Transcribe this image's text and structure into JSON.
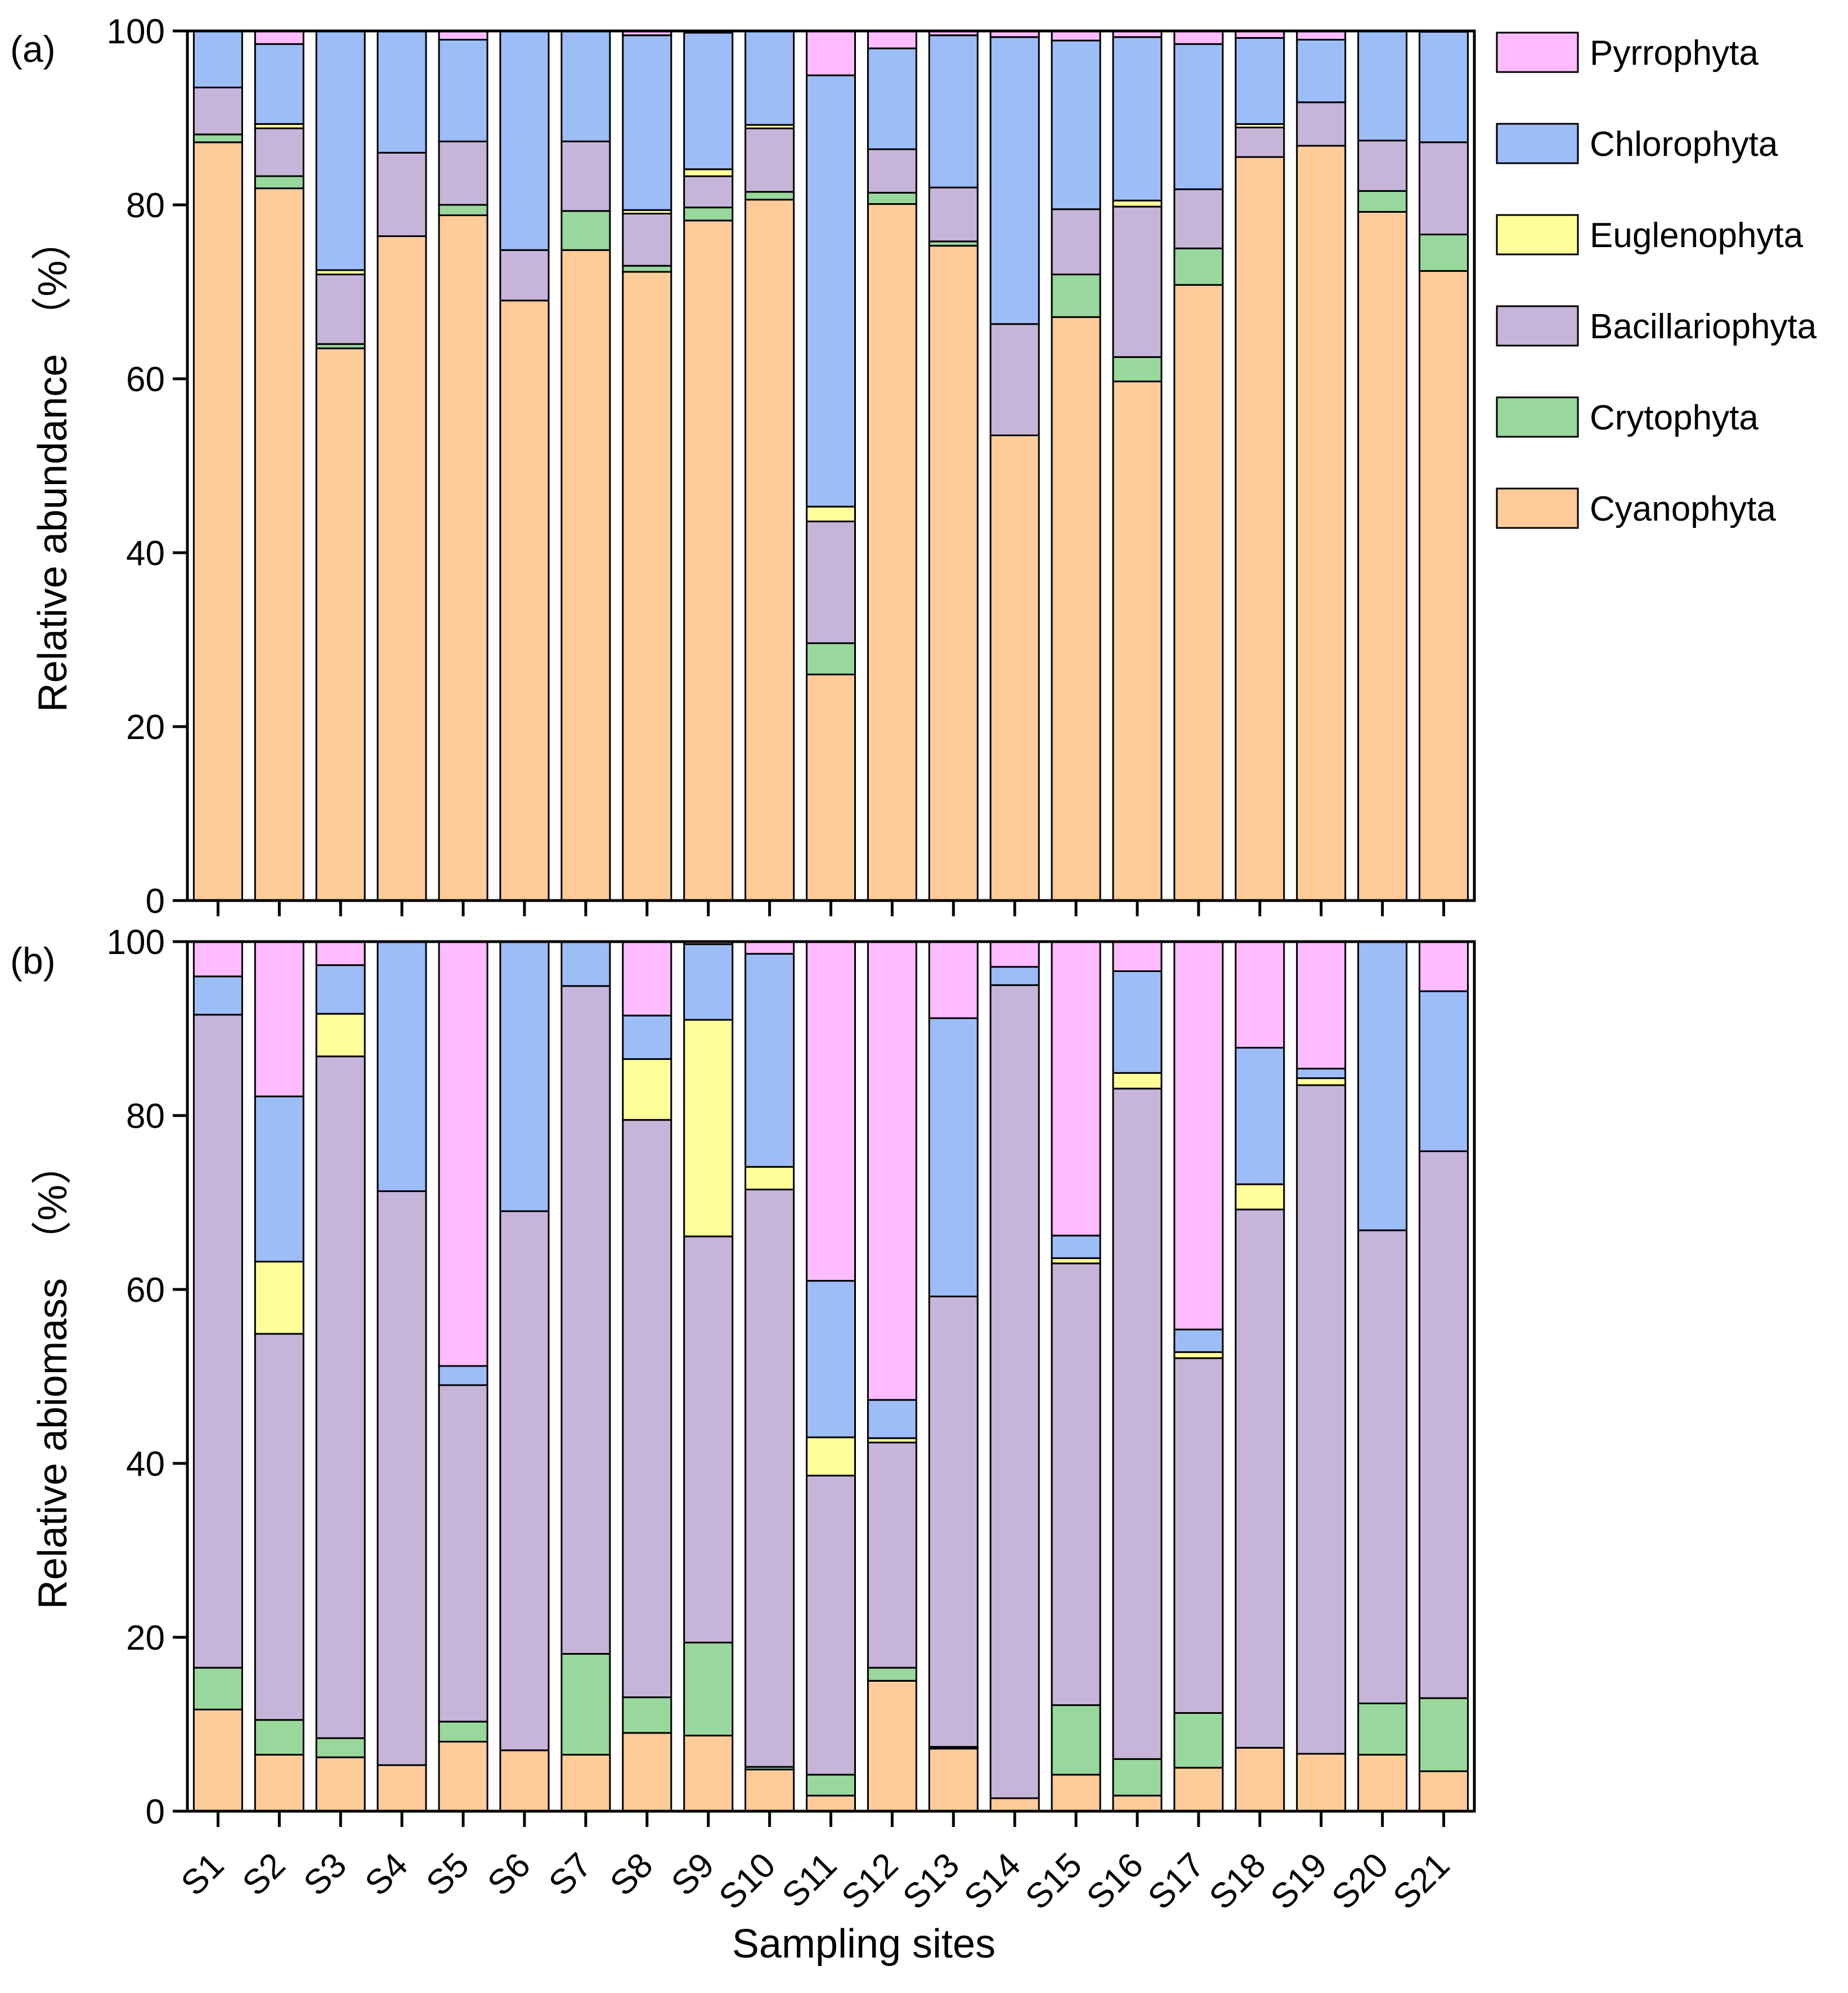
{
  "colors": {
    "Cyanophyta": "#FFCC99",
    "Crytophyta": "#99D89C",
    "Bacillariophyta": "#C6B5D9",
    "Euglenophyta": "#FFFF99",
    "Chlorophyta": "#9DBDF8",
    "Pyrrophyta": "#FFBBFF"
  },
  "legend": [
    "Pyrrophyta",
    "Chlorophyta",
    "Euglenophyta",
    "Bacillariophyta",
    "Crytophyta",
    "Cyanophyta"
  ],
  "chart_data": [
    {
      "type": "bar",
      "stacked": true,
      "panel_label": "(a)",
      "ylabel": "Relative abundance",
      "ylabel_unit": "（%）",
      "xlabel": "",
      "ylim": [
        0,
        100
      ],
      "yticks": [
        "0",
        "20",
        "40",
        "60",
        "80",
        "100"
      ],
      "categories": [
        "S1",
        "S2",
        "S3",
        "S4",
        "S5",
        "S6",
        "S7",
        "S8",
        "S9",
        "S10",
        "S11",
        "S12",
        "S13",
        "S14",
        "S15",
        "S16",
        "S17",
        "S18",
        "S19",
        "S20",
        "S21"
      ],
      "series": [
        {
          "name": "Cyanophyta",
          "values": [
            87.2,
            81.9,
            63.5,
            76.4,
            78.8,
            69.0,
            74.8,
            72.3,
            78.2,
            80.6,
            26.0,
            80.1,
            75.3,
            53.5,
            67.1,
            59.7,
            70.8,
            85.5,
            86.8,
            79.2,
            72.4
          ]
        },
        {
          "name": "Crytophyta",
          "values": [
            0.9,
            1.4,
            0.5,
            0,
            1.2,
            0,
            4.5,
            0.7,
            1.5,
            0.9,
            3.6,
            1.3,
            0.5,
            0,
            4.9,
            2.8,
            4.2,
            0,
            0,
            2.4,
            4.2
          ]
        },
        {
          "name": "Bacillariophyta",
          "values": [
            5.4,
            5.5,
            8.0,
            9.6,
            7.3,
            5.8,
            8.0,
            6.0,
            3.6,
            7.3,
            14.0,
            5.0,
            6.2,
            12.8,
            7.5,
            17.3,
            6.8,
            3.4,
            5.0,
            5.8,
            10.6
          ]
        },
        {
          "name": "Euglenophyta",
          "values": [
            0,
            0.5,
            0.5,
            0,
            0,
            0,
            0,
            0.4,
            0.8,
            0.4,
            1.7,
            0,
            0,
            0,
            0,
            0.7,
            0,
            0.4,
            0,
            0,
            0
          ]
        },
        {
          "name": "Chlorophyta",
          "values": [
            6.5,
            9.2,
            27.5,
            14.0,
            11.7,
            25.2,
            12.7,
            20.1,
            15.7,
            10.8,
            49.6,
            11.6,
            17.5,
            33.0,
            19.4,
            18.8,
            16.7,
            9.9,
            7.2,
            12.6,
            12.7
          ]
        },
        {
          "name": "Pyrrophyta",
          "values": [
            0,
            1.5,
            0,
            0,
            1.0,
            0,
            0,
            0.5,
            0.2,
            0,
            5.1,
            2.0,
            0.5,
            0.7,
            1.1,
            0.7,
            1.5,
            0.8,
            1.0,
            0,
            0.1
          ]
        }
      ]
    },
    {
      "type": "bar",
      "stacked": true,
      "panel_label": "(b)",
      "ylabel": "Relative abiomass",
      "ylabel_unit": "（%）",
      "xlabel": "Sampling sites",
      "ylim": [
        0,
        100
      ],
      "yticks": [
        "0",
        "20",
        "40",
        "60",
        "80",
        "100"
      ],
      "categories": [
        "S1",
        "S2",
        "S3",
        "S4",
        "S5",
        "S6",
        "S7",
        "S8",
        "S9",
        "S10",
        "S11",
        "S12",
        "S13",
        "S14",
        "S15",
        "S16",
        "S17",
        "S18",
        "S19",
        "S20",
        "S21"
      ],
      "series": [
        {
          "name": "Cyanophyta",
          "values": [
            11.7,
            6.5,
            6.2,
            5.3,
            8.0,
            7.0,
            6.5,
            9.0,
            8.7,
            4.8,
            1.8,
            15.0,
            7.2,
            1.5,
            4.2,
            1.8,
            5.0,
            7.3,
            6.6,
            6.5,
            4.6
          ]
        },
        {
          "name": "Crytophyta",
          "values": [
            4.8,
            4.0,
            2.2,
            0,
            2.3,
            0,
            11.6,
            4.1,
            10.7,
            0.3,
            2.4,
            1.5,
            0.2,
            0,
            8.0,
            4.2,
            6.3,
            0,
            0,
            5.9,
            8.4
          ]
        },
        {
          "name": "Bacillariophyta",
          "values": [
            75.1,
            44.4,
            78.4,
            66.0,
            38.7,
            62.0,
            76.8,
            66.4,
            46.7,
            66.4,
            34.4,
            25.9,
            51.8,
            93.5,
            50.8,
            77.1,
            40.8,
            61.9,
            76.9,
            54.4,
            62.9
          ]
        },
        {
          "name": "Euglenophyta",
          "values": [
            0,
            8.3,
            4.9,
            0,
            0,
            0,
            0,
            7.0,
            24.9,
            2.6,
            4.4,
            0.5,
            0,
            0,
            0.6,
            1.8,
            0.7,
            2.9,
            0.8,
            0,
            0
          ]
        },
        {
          "name": "Chlorophyta",
          "values": [
            4.4,
            19.0,
            5.6,
            28.7,
            2.2,
            31.0,
            5.1,
            5.0,
            8.7,
            24.5,
            18.0,
            4.4,
            32.0,
            2.1,
            2.6,
            11.7,
            2.6,
            15.7,
            1.1,
            33.2,
            18.4
          ]
        },
        {
          "name": "Pyrrophyta",
          "values": [
            4.0,
            17.8,
            2.7,
            0,
            48.8,
            0,
            0,
            8.5,
            0.3,
            1.4,
            39.0,
            52.7,
            8.8,
            2.9,
            33.8,
            3.4,
            44.6,
            12.2,
            14.6,
            0,
            5.7
          ]
        }
      ]
    }
  ]
}
